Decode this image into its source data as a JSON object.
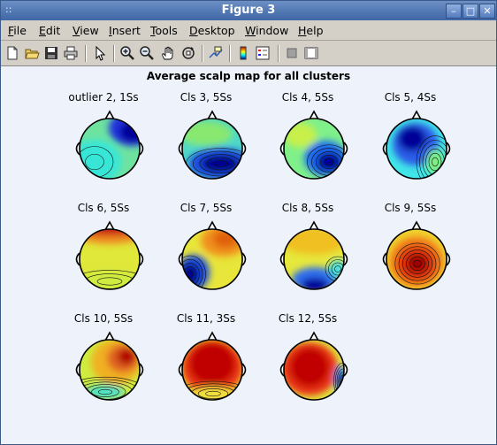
{
  "window": {
    "title": "Figure 3",
    "sysmenu_glyph": "::",
    "minimize_glyph": "–",
    "maximize_glyph": "□",
    "close_glyph": "✕"
  },
  "menubar": {
    "items": [
      {
        "label": "File",
        "mnemonic": "F"
      },
      {
        "label": "Edit",
        "mnemonic": "E"
      },
      {
        "label": "View",
        "mnemonic": "V"
      },
      {
        "label": "Insert",
        "mnemonic": "I"
      },
      {
        "label": "Tools",
        "mnemonic": "T"
      },
      {
        "label": "Desktop",
        "mnemonic": "D"
      },
      {
        "label": "Window",
        "mnemonic": "W"
      },
      {
        "label": "Help",
        "mnemonic": "H"
      }
    ]
  },
  "toolbar": {
    "icons": [
      "new-file-icon",
      "open-folder-icon",
      "save-icon",
      "print-icon",
      "select-arrow-icon",
      "zoom-in-icon",
      "zoom-out-icon",
      "pan-hand-icon",
      "rotate-3d-icon",
      "data-cursor-icon",
      "colorbar-icon",
      "legend-icon",
      "hide-plot-tools-icon",
      "show-plot-tools-icon"
    ]
  },
  "figure": {
    "title": "Average scalp map for all clusters",
    "plots": [
      {
        "label": "outlier 2, 1Ss",
        "pattern": "outlier"
      },
      {
        "label": "Cls 3, 5Ss",
        "pattern": "c3"
      },
      {
        "label": "Cls 4, 5Ss",
        "pattern": "c4"
      },
      {
        "label": "Cls 5, 4Ss",
        "pattern": "c5"
      },
      {
        "label": "Cls 6, 5Ss",
        "pattern": "c6"
      },
      {
        "label": "Cls 7, 5Ss",
        "pattern": "c7"
      },
      {
        "label": "Cls 8, 5Ss",
        "pattern": "c8"
      },
      {
        "label": "Cls 9, 5Ss",
        "pattern": "c9"
      },
      {
        "label": "Cls 10, 5Ss",
        "pattern": "c10"
      },
      {
        "label": "Cls 11, 3Ss",
        "pattern": "c11"
      },
      {
        "label": "Cls 12, 5Ss",
        "pattern": "c12"
      }
    ]
  }
}
